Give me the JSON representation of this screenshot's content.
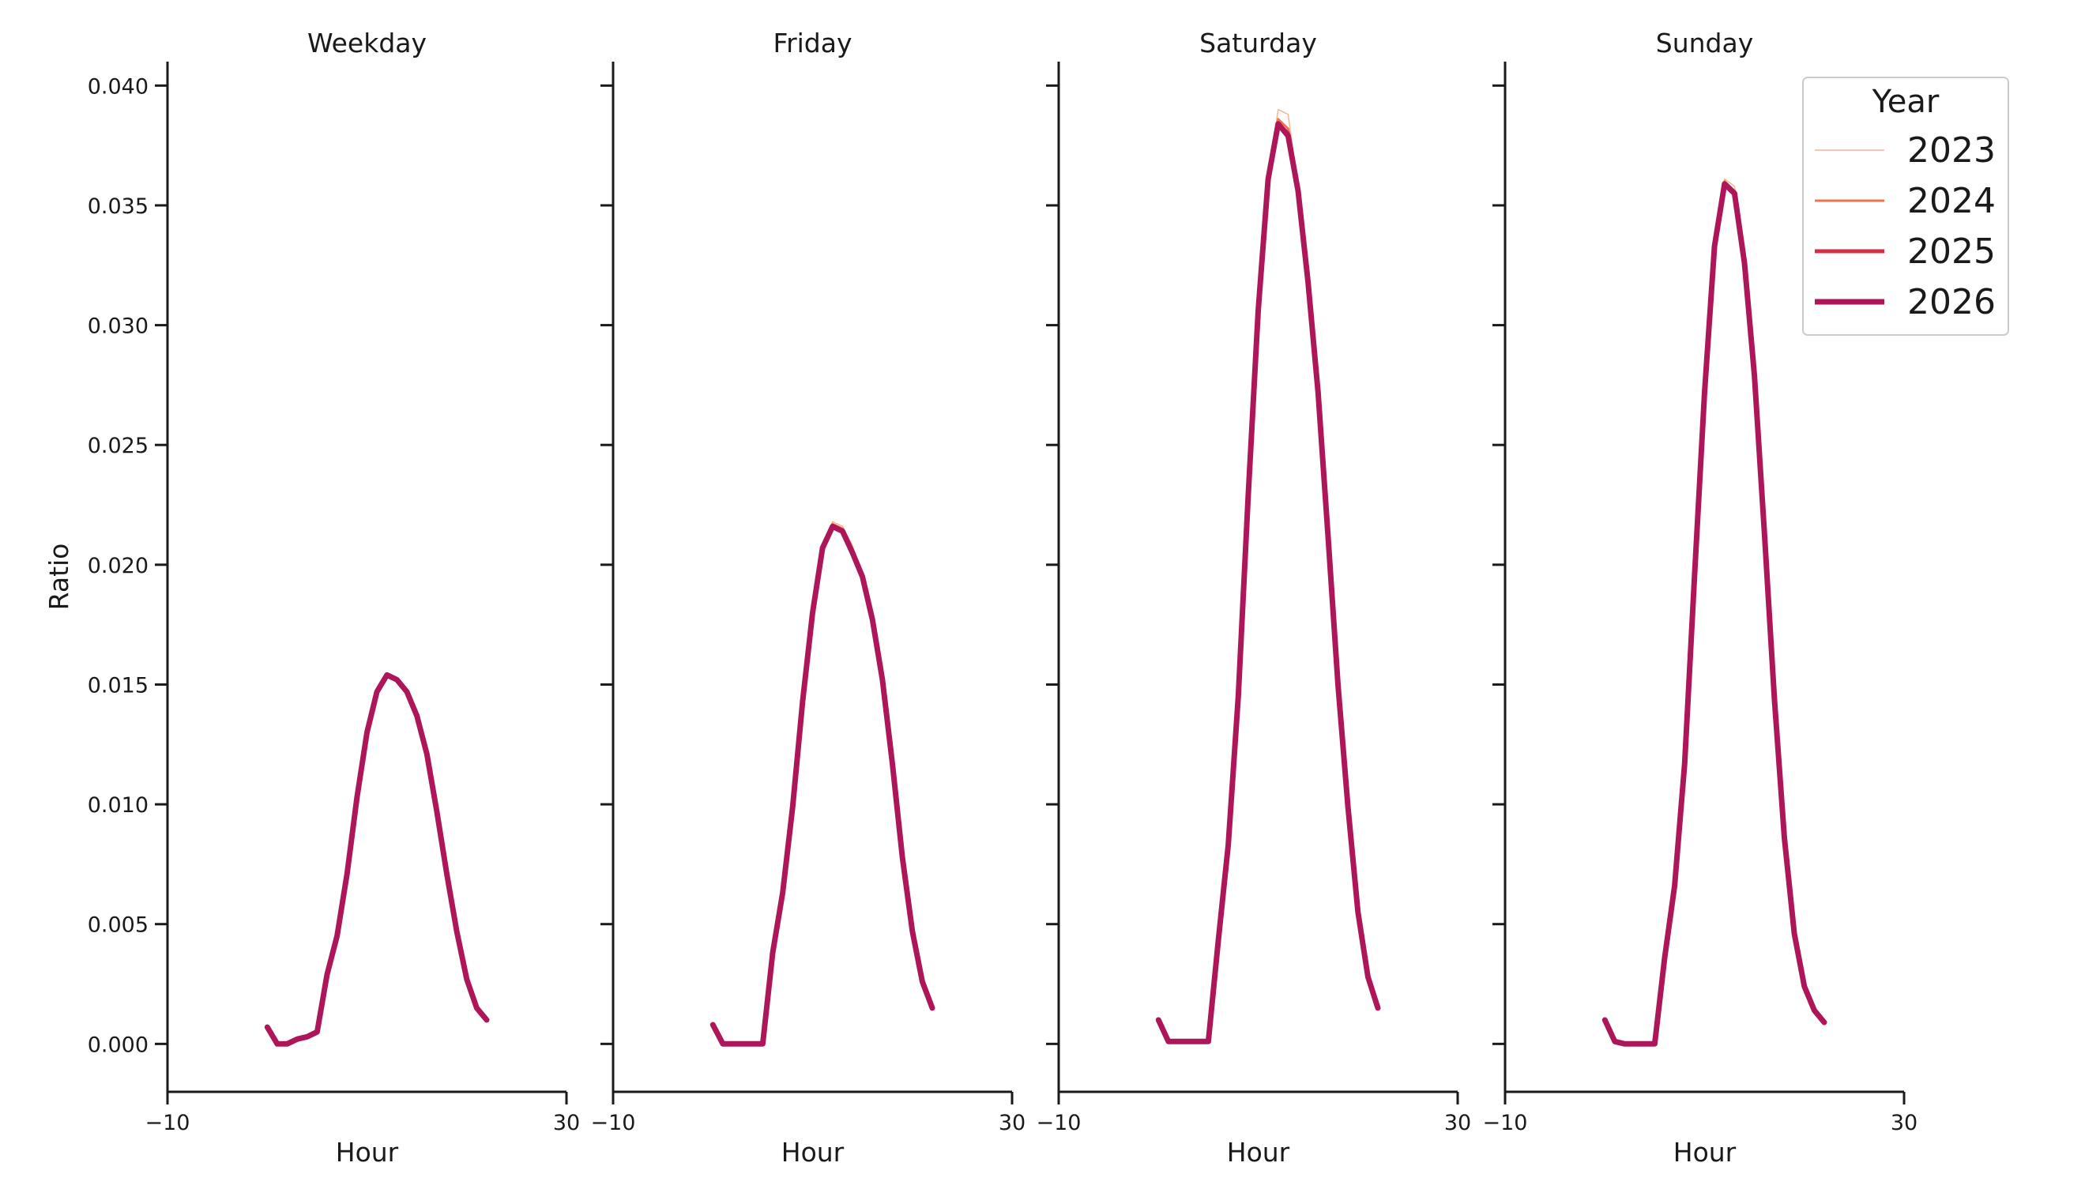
{
  "chart_data": {
    "type": "line",
    "ylabel": "Ratio",
    "xlabel": "Hour",
    "xlim": [
      -10,
      30
    ],
    "ylim": [
      -0.002,
      0.041
    ],
    "x_ticks": [
      -10,
      30
    ],
    "x_tick_labels": [
      "−10",
      "30"
    ],
    "y_ticks": [
      0.0,
      0.005,
      0.01,
      0.015,
      0.02,
      0.025,
      0.03,
      0.035,
      0.04
    ],
    "y_tick_labels": [
      "0.000",
      "0.005",
      "0.010",
      "0.015",
      "0.020",
      "0.025",
      "0.030",
      "0.035",
      "0.040"
    ],
    "grid": false,
    "legend": {
      "title": "Year",
      "position": "top-right",
      "entries": [
        {
          "label": "2023",
          "color": "#f6b48f",
          "width": 1.5
        },
        {
          "label": "2024",
          "color": "#f0744f",
          "width": 3
        },
        {
          "label": "2025",
          "color": "#d42f47",
          "width": 5
        },
        {
          "label": "2026",
          "color": "#ad1759",
          "width": 7
        }
      ]
    },
    "x": [
      0,
      1,
      2,
      3,
      4,
      5,
      6,
      7,
      8,
      9,
      10,
      11,
      12,
      13,
      14,
      15,
      16,
      17,
      18,
      19,
      20,
      21,
      22,
      23
    ],
    "panels": [
      {
        "title": "Weekday",
        "series": [
          {
            "name": "2023",
            "values": [
              0.0007,
              0.0,
              0.0,
              0.0002,
              0.0003,
              0.0005,
              0.0029,
              0.0045,
              0.0071,
              0.0103,
              0.013,
              0.0147,
              0.0154,
              0.0152,
              0.0147,
              0.0137,
              0.0121,
              0.0097,
              0.0071,
              0.0047,
              0.0027,
              0.0015,
              0.001,
              null
            ]
          },
          {
            "name": "2024",
            "values": [
              0.0007,
              0.0,
              0.0,
              0.0002,
              0.0003,
              0.0005,
              0.0029,
              0.0045,
              0.0071,
              0.0103,
              0.013,
              0.0147,
              0.0154,
              0.0152,
              0.0147,
              0.0137,
              0.0121,
              0.0097,
              0.0071,
              0.0047,
              0.0027,
              0.0015,
              0.001,
              null
            ]
          },
          {
            "name": "2025",
            "values": [
              0.0007,
              0.0,
              0.0,
              0.0002,
              0.0003,
              0.0005,
              0.0029,
              0.0045,
              0.0071,
              0.0103,
              0.013,
              0.0147,
              0.0154,
              0.0152,
              0.0147,
              0.0137,
              0.0121,
              0.0097,
              0.0071,
              0.0047,
              0.0027,
              0.0015,
              0.001,
              null
            ]
          },
          {
            "name": "2026",
            "values": [
              0.0007,
              0.0,
              0.0,
              0.0002,
              0.0003,
              0.0005,
              0.0029,
              0.0045,
              0.0071,
              0.0103,
              0.013,
              0.0147,
              0.0154,
              0.0152,
              0.0147,
              0.0137,
              0.0121,
              0.0097,
              0.0071,
              0.0047,
              0.0027,
              0.0015,
              0.001,
              null
            ]
          }
        ]
      },
      {
        "title": "Friday",
        "series": [
          {
            "name": "2023",
            "values": [
              0.0008,
              0.0,
              0.0,
              0.0,
              0.0,
              0.0,
              0.0038,
              0.0063,
              0.0099,
              0.0143,
              0.018,
              0.0207,
              0.0218,
              0.0216,
              0.0208,
              0.0195,
              0.0177,
              0.0152,
              0.0117,
              0.0078,
              0.0047,
              0.0026,
              0.0015,
              null
            ]
          },
          {
            "name": "2024",
            "values": [
              0.0008,
              0.0,
              0.0,
              0.0,
              0.0,
              0.0,
              0.0038,
              0.0063,
              0.0099,
              0.0143,
              0.018,
              0.0207,
              0.0217,
              0.0215,
              0.0206,
              0.0195,
              0.0177,
              0.0152,
              0.0117,
              0.0078,
              0.0047,
              0.0026,
              0.0015,
              null
            ]
          },
          {
            "name": "2025",
            "values": [
              0.0008,
              0.0,
              0.0,
              0.0,
              0.0,
              0.0,
              0.0038,
              0.0063,
              0.0099,
              0.0143,
              0.018,
              0.0207,
              0.0216,
              0.0214,
              0.0205,
              0.0195,
              0.0177,
              0.0152,
              0.0117,
              0.0078,
              0.0047,
              0.0026,
              0.0015,
              null
            ]
          },
          {
            "name": "2026",
            "values": [
              0.0008,
              0.0,
              0.0,
              0.0,
              0.0,
              0.0,
              0.0038,
              0.0063,
              0.0099,
              0.0143,
              0.018,
              0.0207,
              0.0216,
              0.0214,
              0.0205,
              0.0195,
              0.0177,
              0.0152,
              0.0117,
              0.0078,
              0.0047,
              0.0026,
              0.0015,
              null
            ]
          }
        ]
      },
      {
        "title": "Saturday",
        "series": [
          {
            "name": "2023",
            "values": [
              0.001,
              0.0001,
              0.0001,
              0.0001,
              0.0001,
              0.0001,
              0.0043,
              0.0083,
              0.0145,
              0.0229,
              0.0306,
              0.0361,
              0.039,
              0.0388,
              0.0357,
              0.0318,
              0.0272,
              0.0212,
              0.015,
              0.0099,
              0.0055,
              0.0028,
              0.0015,
              null
            ]
          },
          {
            "name": "2024",
            "values": [
              0.001,
              0.0001,
              0.0001,
              0.0001,
              0.0001,
              0.0001,
              0.0043,
              0.0083,
              0.0145,
              0.0229,
              0.0306,
              0.0361,
              0.0386,
              0.0382,
              0.0356,
              0.0318,
              0.0272,
              0.0212,
              0.015,
              0.0099,
              0.0055,
              0.0028,
              0.0015,
              null
            ]
          },
          {
            "name": "2025",
            "values": [
              0.001,
              0.0001,
              0.0001,
              0.0001,
              0.0001,
              0.0001,
              0.0043,
              0.0083,
              0.0145,
              0.0229,
              0.0306,
              0.0361,
              0.0384,
              0.038,
              0.0356,
              0.0318,
              0.0272,
              0.0212,
              0.015,
              0.0099,
              0.0055,
              0.0028,
              0.0015,
              null
            ]
          },
          {
            "name": "2026",
            "values": [
              0.001,
              0.0001,
              0.0001,
              0.0001,
              0.0001,
              0.0001,
              0.0043,
              0.0083,
              0.0145,
              0.0229,
              0.0306,
              0.0361,
              0.0384,
              0.0379,
              0.0356,
              0.0318,
              0.0272,
              0.0212,
              0.015,
              0.0099,
              0.0055,
              0.0028,
              0.0015,
              null
            ]
          }
        ]
      },
      {
        "title": "Sunday",
        "series": [
          {
            "name": "2023",
            "values": [
              0.001,
              0.0001,
              0.0,
              0.0,
              0.0,
              0.0,
              0.0036,
              0.0066,
              0.0117,
              0.0196,
              0.0272,
              0.0333,
              0.0361,
              0.0358,
              0.0328,
              0.0279,
              0.0213,
              0.0144,
              0.0086,
              0.0046,
              0.0024,
              0.0014,
              0.0009,
              null
            ]
          },
          {
            "name": "2024",
            "values": [
              0.001,
              0.0001,
              0.0,
              0.0,
              0.0,
              0.0,
              0.0036,
              0.0066,
              0.0117,
              0.0196,
              0.0272,
              0.0333,
              0.036,
              0.0356,
              0.0327,
              0.0279,
              0.0213,
              0.0144,
              0.0086,
              0.0046,
              0.0024,
              0.0014,
              0.0009,
              null
            ]
          },
          {
            "name": "2025",
            "values": [
              0.001,
              0.0001,
              0.0,
              0.0,
              0.0,
              0.0,
              0.0036,
              0.0066,
              0.0117,
              0.0196,
              0.0272,
              0.0333,
              0.0359,
              0.0355,
              0.0326,
              0.0279,
              0.0213,
              0.0144,
              0.0086,
              0.0046,
              0.0024,
              0.0014,
              0.0009,
              null
            ]
          },
          {
            "name": "2026",
            "values": [
              0.001,
              0.0001,
              0.0,
              0.0,
              0.0,
              0.0,
              0.0036,
              0.0066,
              0.0117,
              0.0196,
              0.0272,
              0.0333,
              0.0359,
              0.0355,
              0.0326,
              0.0279,
              0.0213,
              0.0144,
              0.0086,
              0.0046,
              0.0024,
              0.0014,
              0.0009,
              null
            ]
          }
        ]
      }
    ]
  }
}
